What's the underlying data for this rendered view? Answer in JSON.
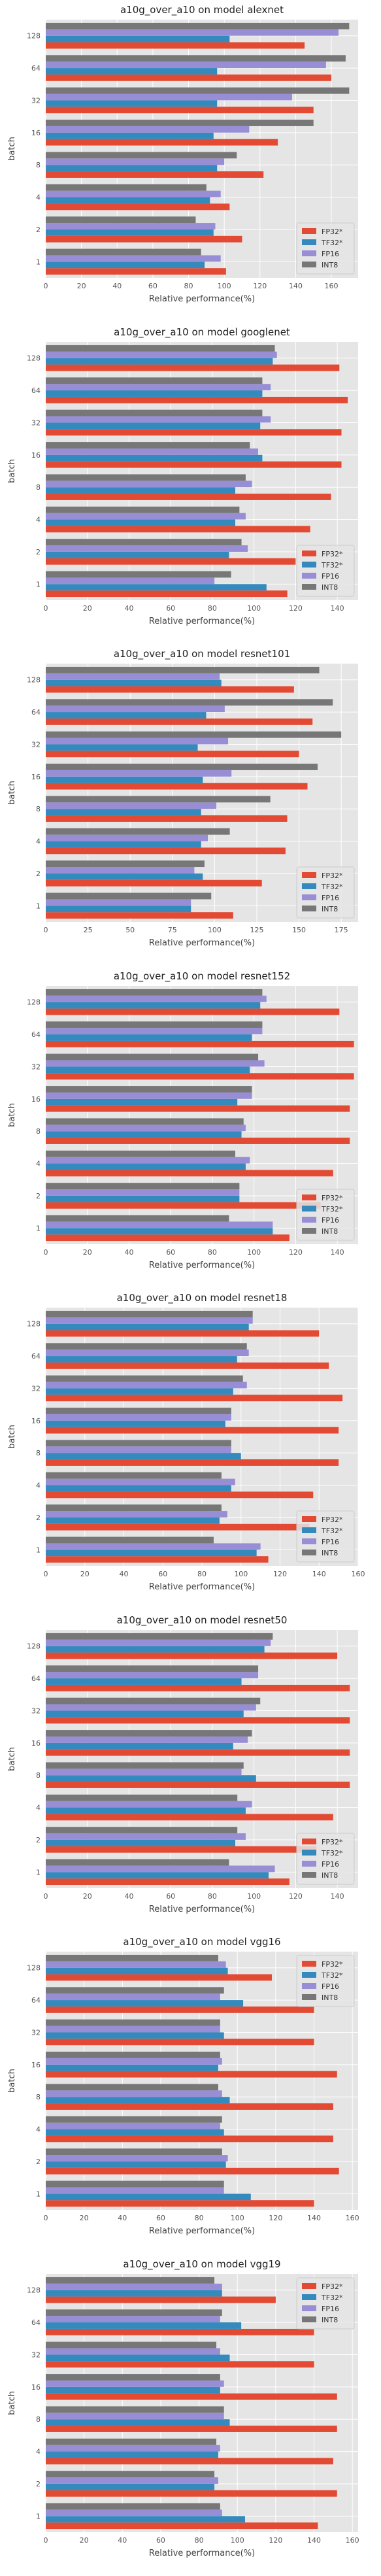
{
  "colors": {
    "FP32*": "#E24A33",
    "TF32*": "#348ABD",
    "FP16": "#988ED5",
    "INT8": "#777777",
    "plot_bg": "#E5E5E5",
    "grid": "#FFFFFF"
  },
  "chart_data": [
    {
      "type": "bar",
      "orientation": "horizontal",
      "title": "a10g_over_a10 on model alexnet",
      "xlabel": "Relative performance(%)",
      "ylabel": "batch",
      "categories": [
        "1",
        "2",
        "4",
        "8",
        "16",
        "32",
        "64",
        "128"
      ],
      "xlim": [
        0,
        175
      ],
      "xticks": [
        0,
        20,
        40,
        60,
        80,
        100,
        120,
        140,
        160
      ],
      "legend": "bottom-right",
      "grid": true,
      "series": [
        {
          "name": "FP32*",
          "values": [
            101,
            110,
            103,
            122,
            130,
            150,
            160,
            145
          ]
        },
        {
          "name": "TF32*",
          "values": [
            89,
            94,
            92,
            96,
            94,
            96,
            96,
            103
          ]
        },
        {
          "name": "FP16",
          "values": [
            98,
            95,
            98,
            100,
            114,
            138,
            157,
            164
          ]
        },
        {
          "name": "INT8",
          "values": [
            87,
            84,
            90,
            107,
            150,
            170,
            168,
            170
          ]
        }
      ]
    },
    {
      "type": "bar",
      "orientation": "horizontal",
      "title": "a10g_over_a10 on model googlenet",
      "xlabel": "Relative performance(%)",
      "ylabel": "batch",
      "categories": [
        "1",
        "2",
        "4",
        "8",
        "16",
        "32",
        "64",
        "128"
      ],
      "xlim": [
        0,
        150
      ],
      "xticks": [
        0,
        20,
        40,
        60,
        80,
        100,
        120,
        140
      ],
      "legend": "bottom-right",
      "grid": true,
      "series": [
        {
          "name": "FP32*",
          "values": [
            116,
            120,
            127,
            137,
            142,
            142,
            145,
            141
          ]
        },
        {
          "name": "TF32*",
          "values": [
            106,
            88,
            91,
            91,
            104,
            103,
            104,
            109
          ]
        },
        {
          "name": "FP16",
          "values": [
            81,
            97,
            96,
            99,
            102,
            108,
            108,
            111
          ]
        },
        {
          "name": "INT8",
          "values": [
            89,
            94,
            93,
            96,
            98,
            104,
            104,
            110
          ]
        }
      ]
    },
    {
      "type": "bar",
      "orientation": "horizontal",
      "title": "a10g_over_a10 on model resnet101",
      "xlabel": "Relative performance(%)",
      "ylabel": "batch",
      "categories": [
        "1",
        "2",
        "4",
        "8",
        "16",
        "32",
        "64",
        "128"
      ],
      "xlim": [
        0,
        185
      ],
      "xticks": [
        0,
        25,
        50,
        75,
        100,
        125,
        150,
        175
      ],
      "legend": "bottom-right",
      "grid": true,
      "series": [
        {
          "name": "FP32*",
          "values": [
            111,
            128,
            142,
            143,
            155,
            150,
            158,
            147
          ]
        },
        {
          "name": "TF32*",
          "values": [
            86,
            93,
            92,
            92,
            93,
            90,
            95,
            104
          ]
        },
        {
          "name": "FP16",
          "values": [
            86,
            88,
            96,
            101,
            110,
            108,
            106,
            103
          ]
        },
        {
          "name": "INT8",
          "values": [
            98,
            94,
            109,
            133,
            161,
            175,
            170,
            162
          ]
        }
      ]
    },
    {
      "type": "bar",
      "orientation": "horizontal",
      "title": "a10g_over_a10 on model resnet152",
      "xlabel": "Relative performance(%)",
      "ylabel": "batch",
      "categories": [
        "1",
        "2",
        "4",
        "8",
        "16",
        "32",
        "64",
        "128"
      ],
      "xlim": [
        0,
        150
      ],
      "xticks": [
        0,
        20,
        40,
        60,
        80,
        100,
        120,
        140
      ],
      "legend": "bottom-right",
      "grid": true,
      "series": [
        {
          "name": "FP32*",
          "values": [
            117,
            132,
            138,
            146,
            146,
            148,
            148,
            141
          ]
        },
        {
          "name": "TF32*",
          "values": [
            109,
            93,
            96,
            94,
            92,
            98,
            99,
            103
          ]
        },
        {
          "name": "FP16",
          "values": [
            109,
            93,
            98,
            96,
            99,
            105,
            104,
            106
          ]
        },
        {
          "name": "INT8",
          "values": [
            88,
            93,
            91,
            95,
            99,
            102,
            104,
            104
          ]
        }
      ]
    },
    {
      "type": "bar",
      "orientation": "horizontal",
      "title": "a10g_over_a10 on model resnet18",
      "xlabel": "Relative performance(%)",
      "ylabel": "batch",
      "categories": [
        "1",
        "2",
        "4",
        "8",
        "16",
        "32",
        "64",
        "128"
      ],
      "xlim": [
        0,
        160
      ],
      "xticks": [
        0,
        20,
        40,
        60,
        80,
        100,
        120,
        140,
        160
      ],
      "legend": "bottom-right",
      "grid": true,
      "series": [
        {
          "name": "FP32*",
          "values": [
            114,
            135,
            137,
            150,
            150,
            152,
            145,
            140
          ]
        },
        {
          "name": "TF32*",
          "values": [
            108,
            89,
            95,
            100,
            92,
            96,
            98,
            104
          ]
        },
        {
          "name": "FP16",
          "values": [
            110,
            93,
            97,
            95,
            95,
            103,
            104,
            106
          ]
        },
        {
          "name": "INT8",
          "values": [
            86,
            90,
            90,
            95,
            95,
            101,
            103,
            106
          ]
        }
      ]
    },
    {
      "type": "bar",
      "orientation": "horizontal",
      "title": "a10g_over_a10 on model resnet50",
      "xlabel": "Relative performance(%)",
      "ylabel": "batch",
      "categories": [
        "1",
        "2",
        "4",
        "8",
        "16",
        "32",
        "64",
        "128"
      ],
      "xlim": [
        0,
        150
      ],
      "xticks": [
        0,
        20,
        40,
        60,
        80,
        100,
        120,
        140
      ],
      "legend": "bottom-right",
      "grid": true,
      "series": [
        {
          "name": "FP32*",
          "values": [
            117,
            130,
            138,
            146,
            146,
            146,
            146,
            140
          ]
        },
        {
          "name": "TF32*",
          "values": [
            107,
            91,
            96,
            101,
            90,
            95,
            94,
            105
          ]
        },
        {
          "name": "FP16",
          "values": [
            110,
            96,
            99,
            94,
            97,
            101,
            102,
            108
          ]
        },
        {
          "name": "INT8",
          "values": [
            88,
            92,
            92,
            95,
            99,
            103,
            102,
            109
          ]
        }
      ]
    },
    {
      "type": "bar",
      "orientation": "horizontal",
      "title": "a10g_over_a10 on model vgg16",
      "xlabel": "Relative performance(%)",
      "ylabel": "batch",
      "categories": [
        "1",
        "2",
        "4",
        "8",
        "16",
        "32",
        "64",
        "128"
      ],
      "xlim": [
        0,
        163
      ],
      "xticks": [
        0,
        20,
        40,
        60,
        80,
        100,
        120,
        140,
        160
      ],
      "legend": "top-right",
      "grid": true,
      "series": [
        {
          "name": "FP32*",
          "values": [
            140,
            153,
            150,
            150,
            152,
            140,
            140,
            118
          ]
        },
        {
          "name": "TF32*",
          "values": [
            107,
            94,
            93,
            96,
            90,
            93,
            103,
            95
          ]
        },
        {
          "name": "FP16",
          "values": [
            93,
            95,
            91,
            92,
            92,
            91,
            91,
            94
          ]
        },
        {
          "name": "INT8",
          "values": [
            93,
            92,
            92,
            90,
            91,
            91,
            93,
            90
          ]
        }
      ]
    },
    {
      "type": "bar",
      "orientation": "horizontal",
      "title": "a10g_over_a10 on model vgg19",
      "xlabel": "Relative performance(%)",
      "ylabel": "batch",
      "categories": [
        "1",
        "2",
        "4",
        "8",
        "16",
        "32",
        "64",
        "128"
      ],
      "xlim": [
        0,
        163
      ],
      "xticks": [
        0,
        20,
        40,
        60,
        80,
        100,
        120,
        140,
        160
      ],
      "legend": "top-right",
      "grid": true,
      "series": [
        {
          "name": "FP32*",
          "values": [
            142,
            152,
            150,
            152,
            152,
            140,
            140,
            120
          ]
        },
        {
          "name": "TF32*",
          "values": [
            104,
            88,
            90,
            96,
            91,
            96,
            102,
            92
          ]
        },
        {
          "name": "FP16",
          "values": [
            92,
            90,
            91,
            93,
            93,
            91,
            91,
            92
          ]
        },
        {
          "name": "INT8",
          "values": [
            91,
            88,
            89,
            93,
            91,
            89,
            92,
            88
          ]
        }
      ]
    }
  ]
}
